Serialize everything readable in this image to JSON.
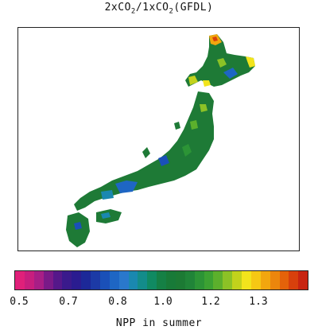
{
  "title": {
    "pre": "2xCO",
    "sub1": "2",
    "mid": "/1xCO",
    "sub2": "2",
    "post": "(GFDL)"
  },
  "legend": {
    "label": "NPP in summer",
    "ticks": [
      "0.5",
      "0.7",
      "0.8",
      "1.0",
      "1.2",
      "1.3"
    ],
    "colors": [
      "#e0207a",
      "#c81e7e",
      "#a81e86",
      "#7a1a88",
      "#55188a",
      "#3a1a8c",
      "#2a1c90",
      "#1c2898",
      "#1c3aa6",
      "#1a50b8",
      "#1e66c4",
      "#2a78cc",
      "#1a88b0",
      "#138c8a",
      "#108a62",
      "#158045",
      "#187a38",
      "#1c7a34",
      "#208438",
      "#2c9436",
      "#3ca232",
      "#5cb02c",
      "#8cc226",
      "#c2d21c",
      "#f2e41c",
      "#f6c814",
      "#f2a60e",
      "#ec860c",
      "#e4620a",
      "#d8400c",
      "#c82410"
    ]
  },
  "map": {
    "region": "Japan",
    "base_color": "#1e7a36"
  }
}
